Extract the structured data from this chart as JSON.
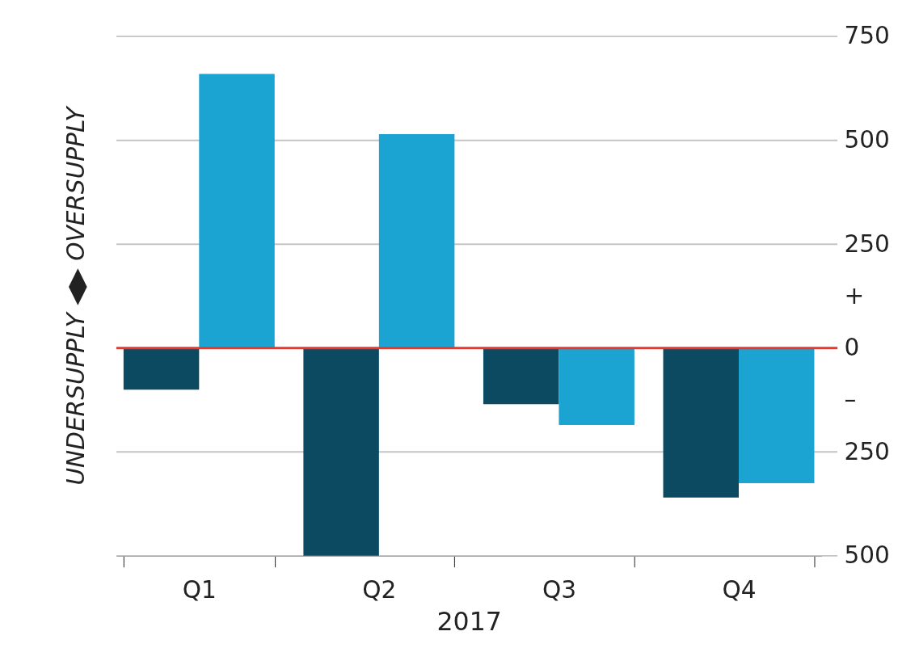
{
  "chart_data": {
    "type": "bar",
    "xlabel": "2017",
    "ylabel": "UNDERSUPPLY ◀▶ OVERSUPPLY",
    "categories": [
      "Q1",
      "Q2",
      "Q3",
      "Q4"
    ],
    "series": [
      {
        "color": "#0b4a61",
        "values": [
          -100,
          -500,
          -135,
          -360
        ]
      },
      {
        "color": "#1ba3d2",
        "values": [
          660,
          515,
          -185,
          -325
        ]
      }
    ],
    "ylim": [
      -500,
      750
    ],
    "yticks": [
      {
        "value": -500,
        "label": "500"
      },
      {
        "value": -250,
        "label": "250"
      },
      {
        "value": -125,
        "label": "–"
      },
      0,
      {
        "value": 125,
        "label": "+"
      },
      250,
      500,
      750
    ],
    "ref_lines": [
      {
        "axis": "y",
        "value": 0,
        "color": "#e8392c"
      }
    ],
    "grid": "y",
    "legend": false
  }
}
